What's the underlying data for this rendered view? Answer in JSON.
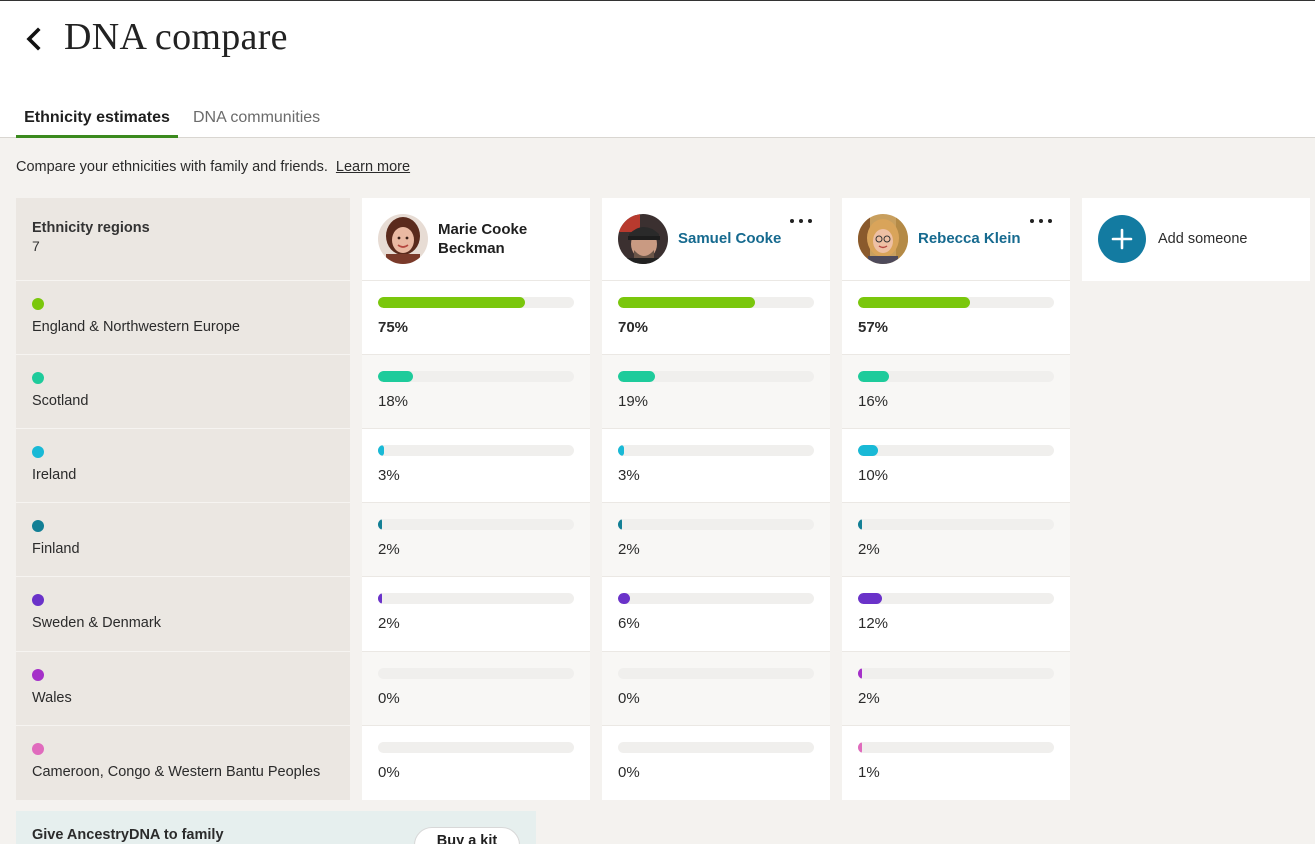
{
  "header": {
    "title": "DNA compare"
  },
  "tabs": [
    {
      "label": "Ethnicity estimates",
      "active": true
    },
    {
      "label": "DNA communities",
      "active": false
    }
  ],
  "intro": {
    "text": "Compare your ethnicities with family and friends.",
    "link": "Learn more"
  },
  "regions_header": {
    "title": "Ethnicity regions",
    "count": "7"
  },
  "regions": [
    {
      "name": "England & Northwestern Europe",
      "color": "#7ac70c"
    },
    {
      "name": "Scotland",
      "color": "#1ecb9b"
    },
    {
      "name": "Ireland",
      "color": "#19b9d6"
    },
    {
      "name": "Finland",
      "color": "#127f95"
    },
    {
      "name": "Sweden & Denmark",
      "color": "#6a32c9"
    },
    {
      "name": "Wales",
      "color": "#a530c9"
    },
    {
      "name": "Cameroon, Congo & Western Bantu Peoples",
      "color": "#e06bbd"
    }
  ],
  "people": [
    {
      "line1": "Marie Cooke",
      "line2": "Beckman",
      "is_self": true,
      "values": [
        "75%",
        "18%",
        "3%",
        "2%",
        "2%",
        "0%",
        "0%"
      ],
      "fractions": [
        0.75,
        0.18,
        0.03,
        0.02,
        0.02,
        0,
        0
      ]
    },
    {
      "name": "Samuel Cooke",
      "is_self": false,
      "values": [
        "70%",
        "19%",
        "3%",
        "2%",
        "6%",
        "0%",
        "0%"
      ],
      "fractions": [
        0.7,
        0.19,
        0.03,
        0.02,
        0.06,
        0,
        0
      ]
    },
    {
      "name": "Rebecca Klein",
      "is_self": false,
      "values": [
        "57%",
        "16%",
        "10%",
        "2%",
        "12%",
        "2%",
        "1%"
      ],
      "fractions": [
        0.57,
        0.16,
        0.1,
        0.02,
        0.12,
        0.02,
        0.01
      ]
    }
  ],
  "add_someone": {
    "label": "Add someone"
  },
  "promo": {
    "text": "Give AncestryDNA to family",
    "button": "Buy a kit"
  },
  "icons": {
    "back": "chevron-left-icon",
    "more": "more-horizontal-icon",
    "add": "plus-icon"
  }
}
